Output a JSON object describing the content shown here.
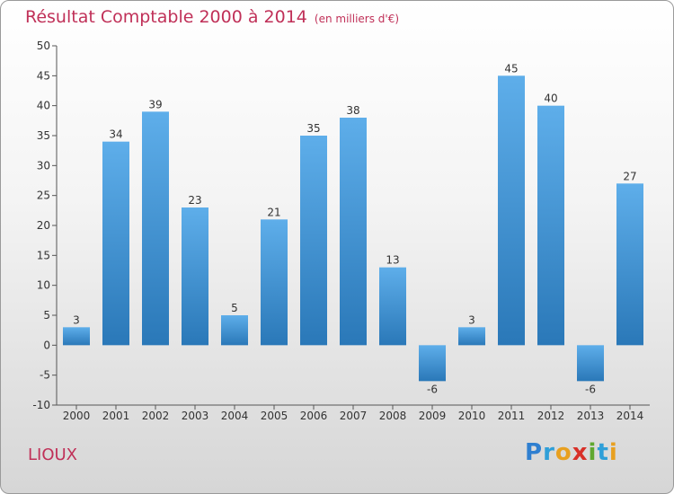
{
  "header": {
    "title": "Résultat Comptable 2000 à 2014",
    "unit": "(en milliers d'€)"
  },
  "footer": {
    "commune": "LIOUX",
    "logo_letters": [
      {
        "char": "P",
        "color": "#2f7fd0"
      },
      {
        "char": "r",
        "color": "#2f9fd8"
      },
      {
        "char": "o",
        "color": "#e8a020"
      },
      {
        "char": "x",
        "color": "#d83028"
      },
      {
        "char": "i",
        "color": "#60a830"
      },
      {
        "char": "t",
        "color": "#2f9fd8"
      },
      {
        "char": "i",
        "color": "#e8a020"
      }
    ]
  },
  "colors": {
    "bar_light": "#5eaeea",
    "bar_dark": "#2a78b8",
    "title": "#c03058"
  },
  "chart_data": {
    "type": "bar",
    "title": "Résultat Comptable 2000 à 2014",
    "ylabel": "en milliers d'€",
    "xlabel": "",
    "categories": [
      "2000",
      "2001",
      "2002",
      "2003",
      "2004",
      "2005",
      "2006",
      "2007",
      "2008",
      "2009",
      "2010",
      "2011",
      "2012",
      "2013",
      "2014"
    ],
    "values": [
      3,
      34,
      39,
      23,
      5,
      21,
      35,
      38,
      13,
      -6,
      3,
      45,
      40,
      -6,
      27
    ],
    "ylim": [
      -10,
      50
    ],
    "yticks": [
      -10,
      -5,
      0,
      5,
      10,
      15,
      20,
      25,
      30,
      35,
      40,
      45,
      50
    ],
    "grid": false,
    "legend": "none"
  }
}
